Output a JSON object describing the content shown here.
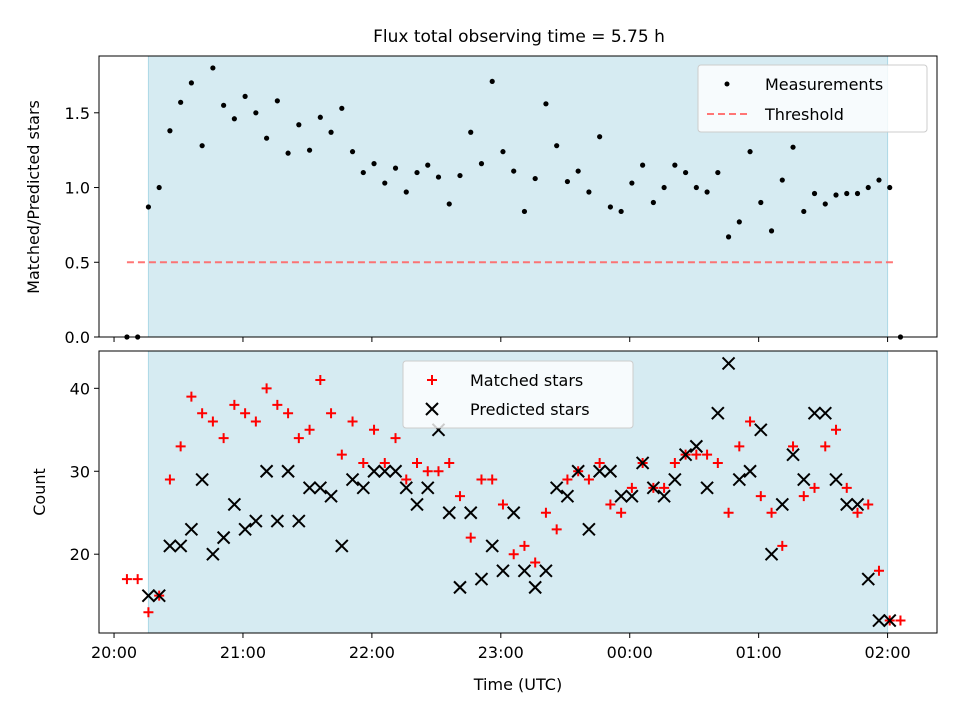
{
  "chart_data": [
    {
      "type": "scatter",
      "title": "Flux total observing time = 5.75 h",
      "xlabel": "",
      "ylabel": "Matched/Predicted stars",
      "xlim": [
        "19:53",
        "02:23"
      ],
      "ylim": [
        0.0,
        1.88
      ],
      "yticks": [
        0.0,
        0.5,
        1.0,
        1.5
      ],
      "ytick_labels": [
        "0.0",
        "0.5",
        "1.0",
        "1.5"
      ],
      "xticks": [
        "20:00",
        "21:00",
        "22:00",
        "23:00",
        "00:00",
        "01:00",
        "02:00"
      ],
      "shaded_interval": [
        "20:16",
        "02:00"
      ],
      "shade_color": "#add8e6",
      "legend_position": "upper right",
      "series": [
        {
          "name": "Measurements",
          "marker": "dot",
          "color": "#000000",
          "x": [
            "20:06",
            "20:11",
            "20:16",
            "20:21",
            "20:26",
            "20:31",
            "20:36",
            "20:41",
            "20:46",
            "20:51",
            "20:56",
            "21:01",
            "21:06",
            "21:11",
            "21:16",
            "21:21",
            "21:26",
            "21:31",
            "21:36",
            "21:41",
            "21:46",
            "21:51",
            "21:56",
            "22:01",
            "22:06",
            "22:11",
            "22:16",
            "22:21",
            "22:26",
            "22:31",
            "22:36",
            "22:41",
            "22:46",
            "22:51",
            "22:56",
            "23:01",
            "23:06",
            "23:11",
            "23:16",
            "23:21",
            "23:26",
            "23:31",
            "23:36",
            "23:41",
            "23:46",
            "23:51",
            "23:56",
            "00:01",
            "00:06",
            "00:11",
            "00:16",
            "00:21",
            "00:26",
            "00:31",
            "00:36",
            "00:41",
            "00:46",
            "00:51",
            "00:56",
            "01:01",
            "01:06",
            "01:11",
            "01:16",
            "01:21",
            "01:26",
            "01:31",
            "01:36",
            "01:41",
            "01:46",
            "01:51",
            "01:56",
            "02:01",
            "02:06"
          ],
          "y": [
            0.0,
            0.0,
            0.87,
            1.0,
            1.38,
            1.57,
            1.7,
            1.28,
            1.8,
            1.55,
            1.46,
            1.61,
            1.5,
            1.33,
            1.58,
            1.23,
            1.42,
            1.25,
            1.47,
            1.37,
            1.53,
            1.24,
            1.1,
            1.16,
            1.03,
            1.13,
            0.97,
            1.1,
            1.15,
            1.07,
            0.89,
            1.08,
            1.37,
            1.16,
            1.71,
            1.24,
            1.11,
            0.84,
            1.06,
            1.56,
            1.28,
            1.04,
            1.11,
            0.97,
            1.34,
            0.87,
            0.84,
            1.03,
            1.15,
            0.9,
            1.0,
            1.15,
            1.1,
            1.0,
            0.97,
            1.1,
            0.67,
            0.77,
            1.24,
            0.9,
            0.71,
            1.05,
            1.27,
            0.84,
            0.96,
            0.89,
            0.95,
            0.96,
            0.96,
            1.0,
            1.05,
            1.0,
            0.0
          ]
        },
        {
          "name": "Threshold",
          "marker": "dashed-line",
          "color": "#ff6666",
          "x": [
            "20:06",
            "02:03"
          ],
          "y": [
            0.5,
            0.5
          ]
        }
      ]
    },
    {
      "type": "scatter",
      "title": "",
      "xlabel": "Time (UTC)",
      "ylabel": "Count",
      "xlim": [
        "19:53",
        "02:23"
      ],
      "ylim": [
        10.5,
        44.5
      ],
      "yticks": [
        20,
        30,
        40
      ],
      "ytick_labels": [
        "20",
        "30",
        "40"
      ],
      "xticks": [
        "20:00",
        "21:00",
        "22:00",
        "23:00",
        "00:00",
        "01:00",
        "02:00"
      ],
      "xtick_labels": [
        "20:00",
        "21:00",
        "22:00",
        "23:00",
        "00:00",
        "01:00",
        "02:00"
      ],
      "shaded_interval": [
        "20:16",
        "02:00"
      ],
      "shade_color": "#add8e6",
      "legend_position": "upper center",
      "series": [
        {
          "name": "Matched stars",
          "marker": "plus",
          "color": "#ff0000",
          "x": [
            "20:06",
            "20:11",
            "20:16",
            "20:21",
            "20:26",
            "20:31",
            "20:36",
            "20:41",
            "20:46",
            "20:51",
            "20:56",
            "21:01",
            "21:06",
            "21:11",
            "21:16",
            "21:21",
            "21:26",
            "21:31",
            "21:36",
            "21:41",
            "21:46",
            "21:51",
            "21:56",
            "22:01",
            "22:06",
            "22:11",
            "22:16",
            "22:21",
            "22:26",
            "22:31",
            "22:36",
            "22:41",
            "22:46",
            "22:51",
            "22:56",
            "23:01",
            "23:06",
            "23:11",
            "23:16",
            "23:21",
            "23:26",
            "23:31",
            "23:36",
            "23:41",
            "23:46",
            "23:51",
            "23:56",
            "00:01",
            "00:06",
            "00:11",
            "00:16",
            "00:21",
            "00:26",
            "00:31",
            "00:36",
            "00:41",
            "00:46",
            "00:51",
            "00:56",
            "01:01",
            "01:06",
            "01:11",
            "01:16",
            "01:21",
            "01:26",
            "01:31",
            "01:36",
            "01:41",
            "01:46",
            "01:51",
            "01:56",
            "02:01",
            "02:06"
          ],
          "y": [
            17,
            17,
            13,
            15,
            29,
            33,
            39,
            37,
            36,
            34,
            38,
            37,
            36,
            40,
            38,
            37,
            34,
            35,
            41,
            37,
            32,
            36,
            31,
            35,
            31,
            34,
            29,
            31,
            30,
            30,
            31,
            27,
            22,
            29,
            29,
            26,
            20,
            21,
            19,
            25,
            23,
            29,
            30,
            29,
            31,
            26,
            25,
            28,
            31,
            28,
            28,
            31,
            32,
            32,
            32,
            31,
            25,
            33,
            36,
            27,
            25,
            21,
            33,
            27,
            28,
            33,
            35,
            28,
            25,
            26,
            18,
            12,
            12
          ]
        },
        {
          "name": "Predicted stars",
          "marker": "x",
          "color": "#000000",
          "x": [
            "20:16",
            "20:21",
            "20:26",
            "20:31",
            "20:36",
            "20:41",
            "20:46",
            "20:51",
            "20:56",
            "21:01",
            "21:06",
            "21:11",
            "21:16",
            "21:21",
            "21:26",
            "21:31",
            "21:36",
            "21:41",
            "21:46",
            "21:51",
            "21:56",
            "22:01",
            "22:06",
            "22:11",
            "22:16",
            "22:21",
            "22:26",
            "22:31",
            "22:36",
            "22:41",
            "22:46",
            "22:51",
            "22:56",
            "23:01",
            "23:06",
            "23:11",
            "23:16",
            "23:21",
            "23:26",
            "23:31",
            "23:36",
            "23:41",
            "23:46",
            "23:51",
            "23:56",
            "00:01",
            "00:06",
            "00:11",
            "00:16",
            "00:21",
            "00:26",
            "00:31",
            "00:36",
            "00:41",
            "00:46",
            "00:51",
            "00:56",
            "01:01",
            "01:06",
            "01:11",
            "01:16",
            "01:21",
            "01:26",
            "01:31",
            "01:36",
            "01:41",
            "01:46",
            "01:51",
            "01:56",
            "02:01"
          ],
          "y": [
            15,
            15,
            21,
            21,
            23,
            29,
            20,
            22,
            26,
            23,
            24,
            30,
            24,
            30,
            24,
            28,
            28,
            27,
            21,
            29,
            28,
            30,
            30,
            30,
            28,
            26,
            28,
            35,
            25,
            16,
            25,
            17,
            21,
            18,
            25,
            18,
            16,
            18,
            28,
            27,
            30,
            23,
            30,
            30,
            27,
            27,
            31,
            28,
            27,
            29,
            32,
            33,
            28,
            37,
            43,
            29,
            30,
            35,
            20,
            26,
            32,
            29,
            37,
            37,
            29,
            26,
            26,
            17,
            12,
            12
          ]
        }
      ]
    }
  ]
}
